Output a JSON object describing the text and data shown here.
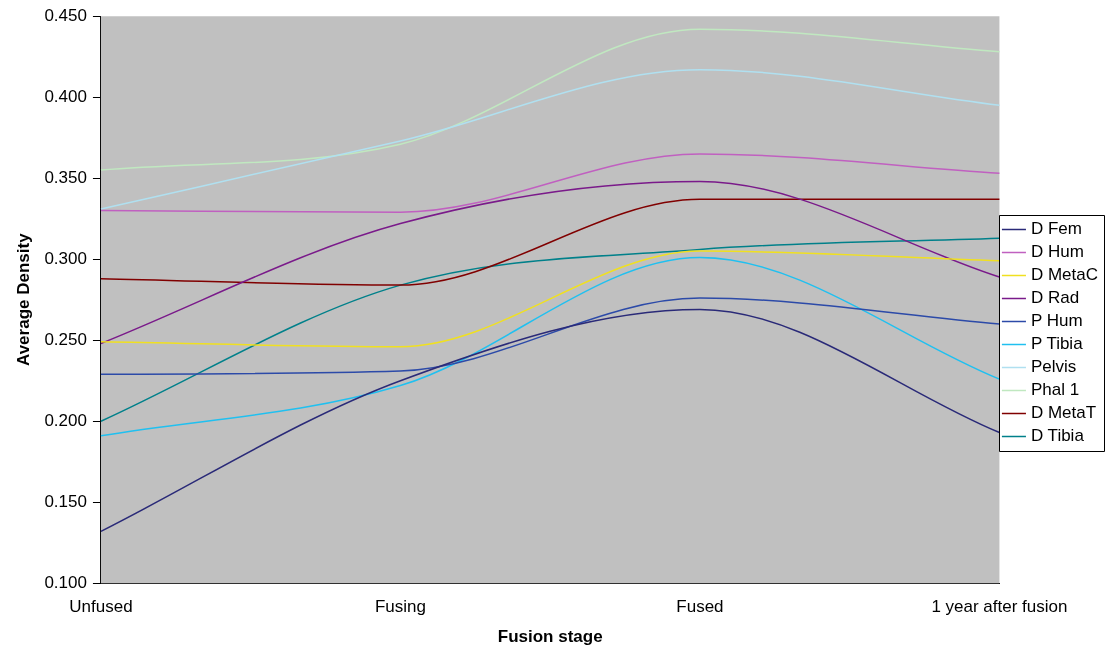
{
  "chart_data": {
    "type": "line",
    "xlabel": "Fusion stage",
    "ylabel": "Average Density",
    "categories": [
      "Unfused",
      "Fusing",
      "Fused",
      "1 year after fusion"
    ],
    "ylim": [
      0.1,
      0.45
    ],
    "yticks": [
      {
        "value": 0.1,
        "label": "0.100"
      },
      {
        "value": 0.15,
        "label": "0.150"
      },
      {
        "value": 0.2,
        "label": "0.200"
      },
      {
        "value": 0.25,
        "label": "0.250"
      },
      {
        "value": 0.3,
        "label": "0.300"
      },
      {
        "value": 0.35,
        "label": "0.350"
      },
      {
        "value": 0.4,
        "label": "0.400"
      },
      {
        "value": 0.45,
        "label": "0.450"
      }
    ],
    "grid": false,
    "legend": "right",
    "marker": "none",
    "line_style": "solid",
    "series": [
      {
        "name": "D Fem",
        "color": "#2a2a78",
        "values": [
          0.132,
          0.225,
          0.269,
          0.193
        ]
      },
      {
        "name": "D Hum",
        "color": "#c060c0",
        "values": [
          0.33,
          0.329,
          0.365,
          0.353
        ]
      },
      {
        "name": "D MetaC",
        "color": "#f0e020",
        "values": [
          0.249,
          0.246,
          0.305,
          0.299
        ]
      },
      {
        "name": "D Rad",
        "color": "#7a1a8a",
        "values": [
          0.248,
          0.322,
          0.348,
          0.289
        ]
      },
      {
        "name": "P Hum",
        "color": "#2c4aa8",
        "values": [
          0.229,
          0.231,
          0.276,
          0.26
        ]
      },
      {
        "name": "P Tibia",
        "color": "#20c0f0",
        "values": [
          0.191,
          0.222,
          0.301,
          0.226
        ]
      },
      {
        "name": "Pelvis",
        "color": "#b0e0f0",
        "values": [
          0.331,
          0.373,
          0.417,
          0.395
        ]
      },
      {
        "name": "Phal 1",
        "color": "#c0e8c0",
        "values": [
          0.355,
          0.371,
          0.442,
          0.428
        ]
      },
      {
        "name": "D MetaT",
        "color": "#800000",
        "values": [
          0.288,
          0.284,
          0.337,
          0.337
        ]
      },
      {
        "name": "D Tibia",
        "color": "#00808a",
        "values": [
          0.2,
          0.284,
          0.306,
          0.313
        ]
      }
    ]
  }
}
